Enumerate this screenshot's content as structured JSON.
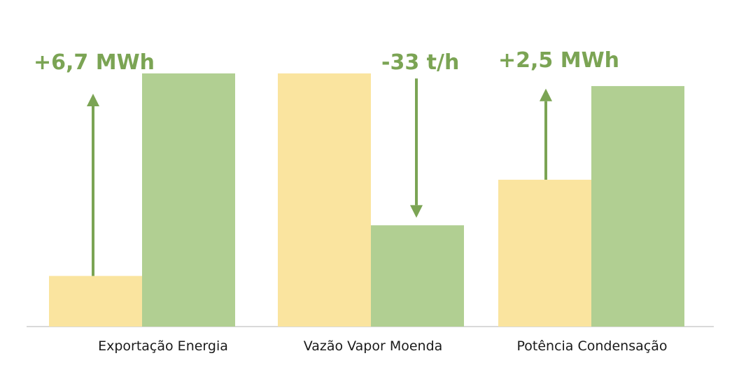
{
  "chart_data": {
    "type": "bar",
    "categories": [
      "Exportação Energia",
      "Vazão Vapor Moenda",
      "Potência Condensação"
    ],
    "series": [
      {
        "values": [
          20,
          100,
          58
        ]
      },
      {
        "values": [
          100,
          40,
          95
        ]
      }
    ],
    "ylim": [
      0,
      100
    ],
    "grid": false,
    "legend": "none",
    "annotations": [
      {
        "category": "Exportação Energia",
        "text": "+6,7 MWh",
        "direction": "up",
        "from": 20,
        "to": 92
      },
      {
        "category": "Vazão Vapor Moenda",
        "text": "-33 t/h",
        "direction": "down",
        "from": 98,
        "to": 43
      },
      {
        "category": "Potência Condensação",
        "text": "+2,5 MWh",
        "direction": "up",
        "from": 58,
        "to": 94
      }
    ],
    "colors": {
      "series": [
        "#fae49f",
        "#b1cf92"
      ],
      "arrow": "#7ba454",
      "axis": "#d9d9d9"
    }
  }
}
